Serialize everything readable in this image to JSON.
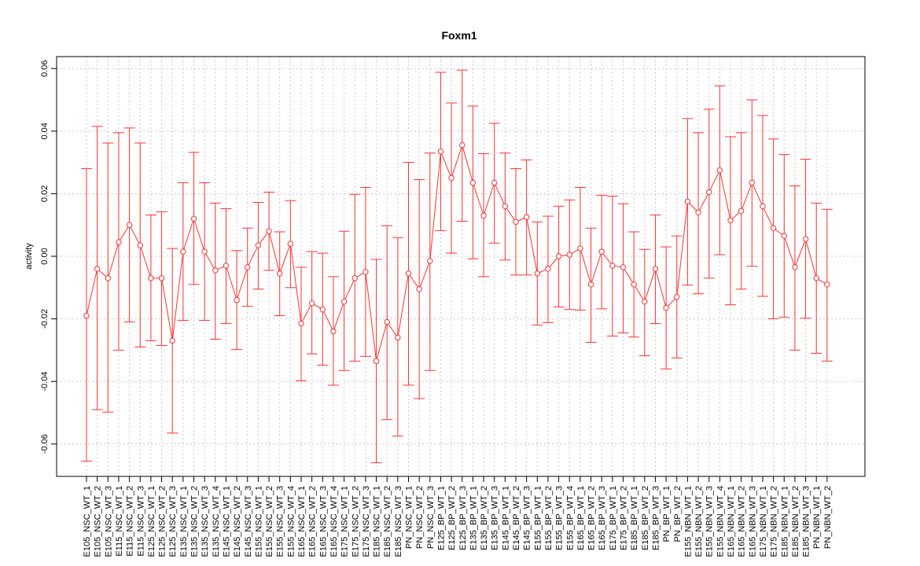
{
  "chart_data": {
    "type": "line",
    "title": "Foxm1",
    "xlabel": "",
    "ylabel": "activity",
    "ylim": [
      -0.07,
      0.062
    ],
    "yticks": [
      -0.06,
      -0.04,
      -0.02,
      0.0,
      0.02,
      0.04,
      0.06
    ],
    "ytick_labels": [
      "-0.06",
      "-0.04",
      "-0.02",
      "0.00",
      "0.02",
      "0.04",
      "0.06"
    ],
    "grid": true,
    "line_color": "#ff3333",
    "grid_color": "#cccccc",
    "zero_line": true,
    "categories": [
      "E105_NSC_WT_1",
      "E105_NSC_WT_2",
      "E105_NSC_WT_3",
      "E115_NSC_WT_1",
      "E115_NSC_WT_2",
      "E115_NSC_WT_3",
      "E125_NSC_WT_1",
      "E125_NSC_WT_2",
      "E125_NSC_WT_3",
      "E135_NSC_WT_1",
      "E135_NSC_WT_2",
      "E135_NSC_WT_3",
      "E135_NSC_WT_4",
      "E145_NSC_WT_1",
      "E145_NSC_WT_2",
      "E145_NSC_WT_3",
      "E155_NSC_WT_1",
      "E155_NSC_WT_2",
      "E155_NSC_WT_3",
      "E155_NSC_WT_4",
      "E165_NSC_WT_1",
      "E165_NSC_WT_2",
      "E165_NSC_WT_3",
      "E165_NSC_WT_4",
      "E175_NSC_WT_1",
      "E175_NSC_WT_2",
      "E175_NSC_WT_3",
      "E185_NSC_WT_1",
      "E185_NSC_WT_2",
      "E185_NSC_WT_3",
      "PN_NSC_WT_1",
      "PN_NSC_WT_2",
      "PN_NSC_WT_3",
      "E125_BP_WT_1",
      "E125_BP_WT_2",
      "E125_BP_WT_3",
      "E135_BP_WT_1",
      "E135_BP_WT_2",
      "E135_BP_WT_3",
      "E145_BP_WT_1",
      "E145_BP_WT_2",
      "E145_BP_WT_3",
      "E155_BP_WT_1",
      "E155_BP_WT_2",
      "E155_BP_WT_3",
      "E155_BP_WT_4",
      "E165_BP_WT_1",
      "E165_BP_WT_2",
      "E165_BP_WT_3",
      "E175_BP_WT_1",
      "E175_BP_WT_2",
      "E185_BP_WT_1",
      "E185_BP_WT_2",
      "E185_BP_WT_3",
      "PN_BP_WT_1",
      "PN_BP_WT_2",
      "E155_NBN_WT_1",
      "E155_NBN_WT_2",
      "E155_NBN_WT_3",
      "E155_NBN_WT_4",
      "E165_NBN_WT_1",
      "E165_NBN_WT_2",
      "E165_NBN_WT_3",
      "E175_NBN_WT_1",
      "E175_NBN_WT_2",
      "E185_NBN_WT_1",
      "E185_NBN_WT_2",
      "E185_NBN_WT_3",
      "PN_NBN_WT_1",
      "PN_NBN_WT_2"
    ],
    "series": [
      {
        "values": [
          -0.019,
          -0.004,
          -0.007,
          0.0045,
          0.01,
          0.0035,
          -0.007,
          -0.007,
          -0.027,
          0.0015,
          0.012,
          0.0015,
          -0.0045,
          -0.003,
          -0.014,
          -0.0035,
          0.0035,
          0.008,
          -0.0055,
          0.004,
          -0.0215,
          -0.015,
          -0.017,
          -0.024,
          -0.0145,
          -0.007,
          -0.005,
          -0.0335,
          -0.021,
          -0.026,
          -0.0055,
          -0.0105,
          -0.0015,
          0.0335,
          0.025,
          0.0355,
          0.0235,
          0.013,
          0.0235,
          0.016,
          0.011,
          0.0125,
          -0.0055,
          -0.004,
          0.0,
          0.0005,
          0.0025,
          -0.009,
          0.0015,
          -0.003,
          -0.0035,
          -0.009,
          -0.0145,
          -0.004,
          -0.0165,
          -0.013,
          0.0175,
          0.014,
          0.0205,
          0.0275,
          0.0115,
          0.0145,
          0.0235,
          0.016,
          0.009,
          0.0065,
          -0.0035,
          0.0055,
          -0.007,
          -0.009
        ],
        "upper": [
          0.028,
          0.0415,
          0.0362,
          0.0395,
          0.041,
          0.0362,
          0.0132,
          0.0142,
          0.0025,
          0.0235,
          0.0332,
          0.0235,
          0.017,
          0.0152,
          0.0018,
          0.009,
          0.0172,
          0.0205,
          0.0078,
          0.0178,
          -0.0035,
          0.0015,
          0.001,
          -0.0065,
          0.008,
          0.0198,
          0.022,
          -0.001,
          0.0098,
          0.006,
          0.03,
          0.0245,
          0.033,
          0.0588,
          0.049,
          0.0595,
          0.048,
          0.0328,
          0.0425,
          0.033,
          0.028,
          0.0308,
          0.011,
          0.0128,
          0.016,
          0.018,
          0.022,
          0.009,
          0.0195,
          0.0192,
          0.0168,
          0.0078,
          0.0022,
          0.0132,
          0.003,
          0.0065,
          0.044,
          0.0395,
          0.047,
          0.0545,
          0.0382,
          0.0395,
          0.05,
          0.045,
          0.0375,
          0.0325,
          0.0225,
          0.031,
          0.017,
          0.015
        ],
        "lower": [
          -0.0655,
          -0.049,
          -0.0498,
          -0.03,
          -0.021,
          -0.029,
          -0.027,
          -0.0285,
          -0.0565,
          -0.0205,
          -0.009,
          -0.0205,
          -0.0265,
          -0.0215,
          -0.0298,
          -0.016,
          -0.0105,
          -0.0045,
          -0.019,
          -0.01,
          -0.0398,
          -0.0312,
          -0.0348,
          -0.0412,
          -0.0365,
          -0.0335,
          -0.032,
          -0.066,
          -0.0522,
          -0.0575,
          -0.0412,
          -0.0455,
          -0.0365,
          0.0082,
          0.001,
          0.0112,
          -0.0008,
          -0.0065,
          0.0042,
          -0.0012,
          -0.006,
          -0.006,
          -0.022,
          -0.0212,
          -0.0162,
          -0.017,
          -0.0172,
          -0.0275,
          -0.0168,
          -0.0255,
          -0.0245,
          -0.0258,
          -0.0318,
          -0.0215,
          -0.036,
          -0.0325,
          -0.0092,
          -0.012,
          -0.007,
          0.0005,
          -0.0155,
          -0.0105,
          -0.0032,
          -0.0128,
          -0.02,
          -0.0195,
          -0.03,
          -0.0198,
          -0.031,
          -0.0335
        ]
      }
    ]
  }
}
